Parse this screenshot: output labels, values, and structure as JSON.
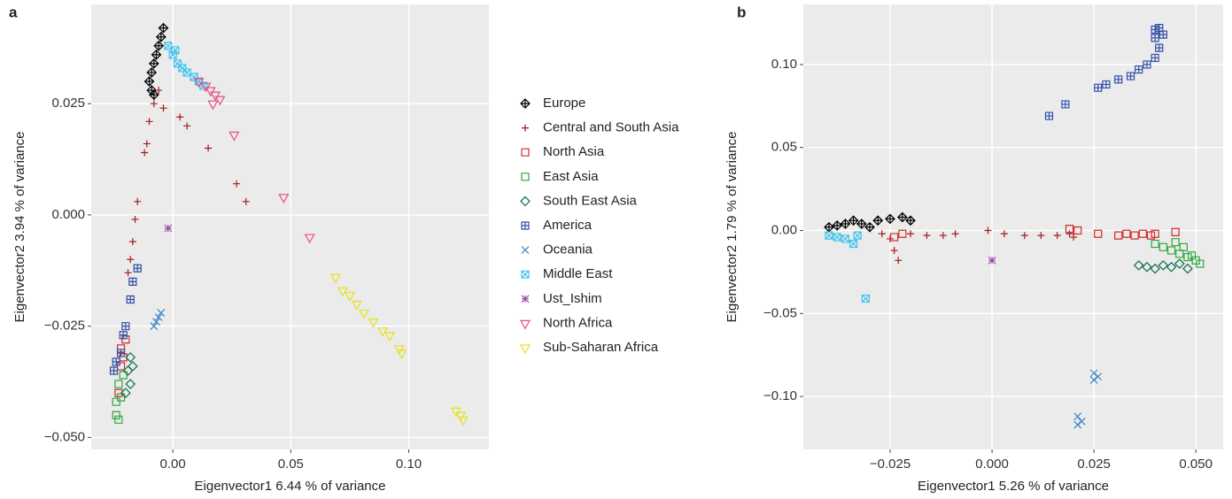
{
  "chart_data": [
    {
      "type": "scatter",
      "label": "a",
      "xlabel": "Eigenvector1 6.44 % of variance",
      "ylabel": "Eigenvector2  3.94 % of variance",
      "xlim": [
        -0.0346,
        0.134
      ],
      "ylim": [
        -0.0527,
        0.0473
      ],
      "xticks": [
        {
          "value": 0,
          "label": "0.00"
        },
        {
          "value": 0.05,
          "label": "0.05"
        },
        {
          "value": 0.1,
          "label": "0.10"
        }
      ],
      "yticks": [
        {
          "value": -0.05,
          "label": "−0.050"
        },
        {
          "value": -0.025,
          "label": "−0.025"
        },
        {
          "value": 0,
          "label": "0.000"
        },
        {
          "value": 0.025,
          "label": "0.025"
        }
      ],
      "grid": true,
      "legend": "right",
      "series": [
        {
          "name": "Europe",
          "color": "#000000",
          "marker": "diamond-plus",
          "x": [
            -0.004,
            -0.005,
            -0.006,
            -0.007,
            -0.008,
            -0.009,
            -0.01,
            -0.009,
            -0.008
          ],
          "y": [
            0.042,
            0.04,
            0.038,
            0.036,
            0.034,
            0.032,
            0.03,
            0.028,
            0.027
          ]
        },
        {
          "name": "Central and South Asia",
          "color": "#a51c1c",
          "marker": "plus",
          "x": [
            -0.006,
            -0.008,
            -0.01,
            -0.011,
            -0.012,
            -0.004,
            0.003,
            0.006,
            0.015,
            0.027,
            0.031,
            -0.015,
            -0.016,
            -0.017,
            -0.018,
            -0.019
          ],
          "y": [
            0.028,
            0.025,
            0.021,
            0.016,
            0.014,
            0.024,
            0.022,
            0.02,
            0.015,
            0.007,
            0.003,
            0.003,
            -0.001,
            -0.006,
            -0.01,
            -0.013
          ]
        },
        {
          "name": "North Asia",
          "color": "#d42a2a",
          "marker": "square",
          "x": [
            -0.021,
            -0.022,
            -0.023,
            -0.02,
            -0.022
          ],
          "y": [
            -0.032,
            -0.034,
            -0.04,
            -0.028,
            -0.03
          ]
        },
        {
          "name": "East Asia",
          "color": "#2ea83c",
          "marker": "square",
          "x": [
            -0.023,
            -0.024,
            -0.024,
            -0.023,
            -0.022,
            -0.021
          ],
          "y": [
            -0.038,
            -0.042,
            -0.045,
            -0.046,
            -0.041,
            -0.036
          ]
        },
        {
          "name": "South East Asia",
          "color": "#0b6e4f",
          "marker": "diamond",
          "x": [
            -0.018,
            -0.019,
            -0.018,
            -0.02,
            -0.017
          ],
          "y": [
            -0.032,
            -0.035,
            -0.038,
            -0.04,
            -0.034
          ]
        },
        {
          "name": "America",
          "color": "#2f4fa8",
          "marker": "square-plus",
          "x": [
            -0.015,
            -0.017,
            -0.018,
            -0.021,
            -0.022,
            -0.024,
            -0.025,
            -0.02
          ],
          "y": [
            -0.012,
            -0.015,
            -0.019,
            -0.027,
            -0.031,
            -0.033,
            -0.035,
            -0.025
          ]
        },
        {
          "name": "Oceania",
          "color": "#3e86c6",
          "marker": "x",
          "x": [
            -0.008,
            -0.006,
            -0.005,
            -0.007
          ],
          "y": [
            -0.025,
            -0.023,
            -0.022,
            -0.024
          ]
        },
        {
          "name": "Middle East",
          "color": "#3ec3ef",
          "marker": "square-x",
          "x": [
            -0.002,
            0,
            0.002,
            0.004,
            0.006,
            0.009,
            0.011,
            0.013,
            0.001
          ],
          "y": [
            0.038,
            0.036,
            0.034,
            0.033,
            0.032,
            0.031,
            0.03,
            0.029,
            0.037
          ]
        },
        {
          "name": "Ust_Ishim",
          "color": "#9b4fa8",
          "marker": "asterisk",
          "x": [
            -0.002
          ],
          "y": [
            -0.003
          ]
        },
        {
          "name": "North Africa",
          "color": "#ea4d8a",
          "marker": "triangle-down",
          "x": [
            0.011,
            0.014,
            0.016,
            0.018,
            0.02,
            0.017,
            0.026,
            0.047,
            0.058
          ],
          "y": [
            0.03,
            0.029,
            0.028,
            0.027,
            0.026,
            0.025,
            0.018,
            0.004,
            -0.005
          ]
        },
        {
          "name": "Sub-Saharan Africa",
          "color": "#e6e21a",
          "marker": "triangle-down",
          "x": [
            0.069,
            0.072,
            0.075,
            0.078,
            0.081,
            0.085,
            0.089,
            0.092,
            0.096,
            0.097,
            0.12,
            0.122,
            0.123
          ],
          "y": [
            -0.014,
            -0.017,
            -0.018,
            -0.02,
            -0.022,
            -0.024,
            -0.026,
            -0.027,
            -0.03,
            -0.031,
            -0.044,
            -0.045,
            -0.046
          ]
        }
      ]
    },
    {
      "type": "scatter",
      "label": "b",
      "xlabel": "Eigenvector1 5.26 % of variance",
      "ylabel": "Eigenvector2 1.79 % of variance",
      "xlim": [
        -0.0463,
        0.0567
      ],
      "ylim": [
        -0.1319,
        0.1362
      ],
      "xticks": [
        {
          "value": -0.025,
          "label": "−0.025"
        },
        {
          "value": 0,
          "label": "0.000"
        },
        {
          "value": 0.025,
          "label": "0.025"
        },
        {
          "value": 0.05,
          "label": "0.050"
        }
      ],
      "yticks": [
        {
          "value": -0.1,
          "label": "−0.10"
        },
        {
          "value": -0.05,
          "label": "−0.05"
        },
        {
          "value": 0,
          "label": "0.00"
        },
        {
          "value": 0.05,
          "label": "0.05"
        },
        {
          "value": 0.1,
          "label": "0.10"
        }
      ],
      "grid": true,
      "series": [
        {
          "color": "#000000",
          "marker": "diamond-plus",
          "x": [
            -0.04,
            -0.038,
            -0.036,
            -0.034,
            -0.032,
            -0.03,
            -0.028,
            -0.025,
            -0.022,
            -0.02
          ],
          "y": [
            0.002,
            0.003,
            0.004,
            0.006,
            0.004,
            0.002,
            0.006,
            0.007,
            0.008,
            0.006
          ]
        },
        {
          "color": "#a51c1c",
          "marker": "plus",
          "x": [
            -0.027,
            -0.025,
            -0.024,
            -0.023,
            -0.02,
            -0.016,
            -0.012,
            -0.009,
            -0.001,
            0.003,
            0.008,
            0.012,
            0.016,
            0.02,
            0.019
          ],
          "y": [
            -0.002,
            -0.005,
            -0.012,
            -0.018,
            -0.002,
            -0.003,
            -0.003,
            -0.002,
            0,
            -0.002,
            -0.003,
            -0.003,
            -0.003,
            -0.004,
            -0.002
          ]
        },
        {
          "color": "#d42a2a",
          "marker": "square",
          "x": [
            0.019,
            0.021,
            0.026,
            0.031,
            0.033,
            0.035,
            0.037,
            0.039,
            0.04,
            0.045,
            -0.024,
            -0.022
          ],
          "y": [
            0.001,
            0,
            -0.002,
            -0.003,
            -0.002,
            -0.003,
            -0.002,
            -0.003,
            -0.002,
            -0.001,
            -0.004,
            -0.002
          ]
        },
        {
          "color": "#2ea83c",
          "marker": "square",
          "x": [
            0.04,
            0.042,
            0.044,
            0.046,
            0.048,
            0.05,
            0.047,
            0.051,
            0.049,
            0.045
          ],
          "y": [
            -0.008,
            -0.01,
            -0.012,
            -0.014,
            -0.016,
            -0.018,
            -0.01,
            -0.02,
            -0.015,
            -0.007
          ]
        },
        {
          "color": "#0b6e4f",
          "marker": "diamond",
          "x": [
            0.036,
            0.038,
            0.04,
            0.042,
            0.044,
            0.046,
            0.048
          ],
          "y": [
            -0.021,
            -0.022,
            -0.023,
            -0.021,
            -0.022,
            -0.02,
            -0.023
          ]
        },
        {
          "color": "#2f4fa8",
          "marker": "square-plus",
          "x": [
            0.014,
            0.018,
            0.026,
            0.028,
            0.031,
            0.034,
            0.036,
            0.038,
            0.04,
            0.041,
            0.04,
            0.04,
            0.042,
            0.041
          ],
          "y": [
            0.069,
            0.076,
            0.086,
            0.088,
            0.091,
            0.093,
            0.097,
            0.1,
            0.104,
            0.11,
            0.116,
            0.121,
            0.118,
            0.122
          ]
        },
        {
          "color": "#3e86c6",
          "marker": "x",
          "x": [
            0.021,
            0.022,
            0.021,
            0.025,
            0.025,
            0.026
          ],
          "y": [
            -0.112,
            -0.115,
            -0.117,
            -0.086,
            -0.09,
            -0.088
          ]
        },
        {
          "color": "#3ec3ef",
          "marker": "square-x",
          "x": [
            -0.04,
            -0.038,
            -0.036,
            -0.034,
            -0.033,
            -0.031
          ],
          "y": [
            -0.003,
            -0.004,
            -0.005,
            -0.008,
            -0.003,
            -0.041
          ]
        },
        {
          "color": "#9b4fa8",
          "marker": "asterisk",
          "x": [
            0
          ],
          "y": [
            -0.018
          ]
        }
      ]
    }
  ]
}
